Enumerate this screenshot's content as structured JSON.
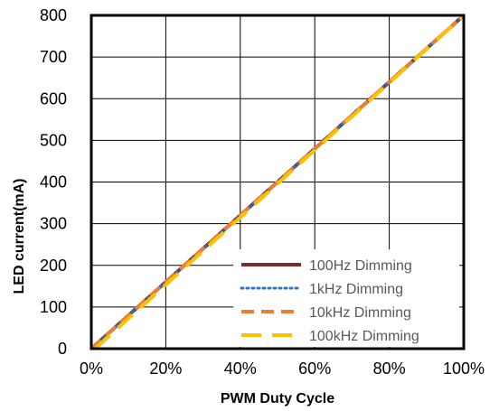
{
  "chart_data": {
    "type": "line",
    "title": "",
    "xlabel": "PWM Duty Cycle",
    "ylabel": "LED current(mA)",
    "xlim": [
      0,
      100
    ],
    "ylim": [
      0,
      800
    ],
    "x_ticks": [
      "0%",
      "20%",
      "40%",
      "60%",
      "80%",
      "100%"
    ],
    "y_ticks": [
      "0",
      "100",
      "200",
      "300",
      "400",
      "500",
      "600",
      "700",
      "800"
    ],
    "grid": true,
    "legend_position": "bottom-right",
    "series": [
      {
        "name": "100Hz Dimming",
        "color": "#7b2c2c",
        "style": "solid",
        "x": [
          0,
          100
        ],
        "y": [
          0,
          800
        ]
      },
      {
        "name": "1kHz Dimming",
        "color": "#2e75b6",
        "style": "dotted",
        "x": [
          0,
          100
        ],
        "y": [
          0,
          800
        ]
      },
      {
        "name": "10kHz Dimming",
        "color": "#ed7d31",
        "style": "dashed",
        "x": [
          0,
          100
        ],
        "y": [
          0,
          800
        ]
      },
      {
        "name": "100kHz Dimming",
        "color": "#ffc000",
        "style": "longdash",
        "x": [
          1,
          100
        ],
        "y": [
          0,
          800
        ]
      }
    ]
  }
}
